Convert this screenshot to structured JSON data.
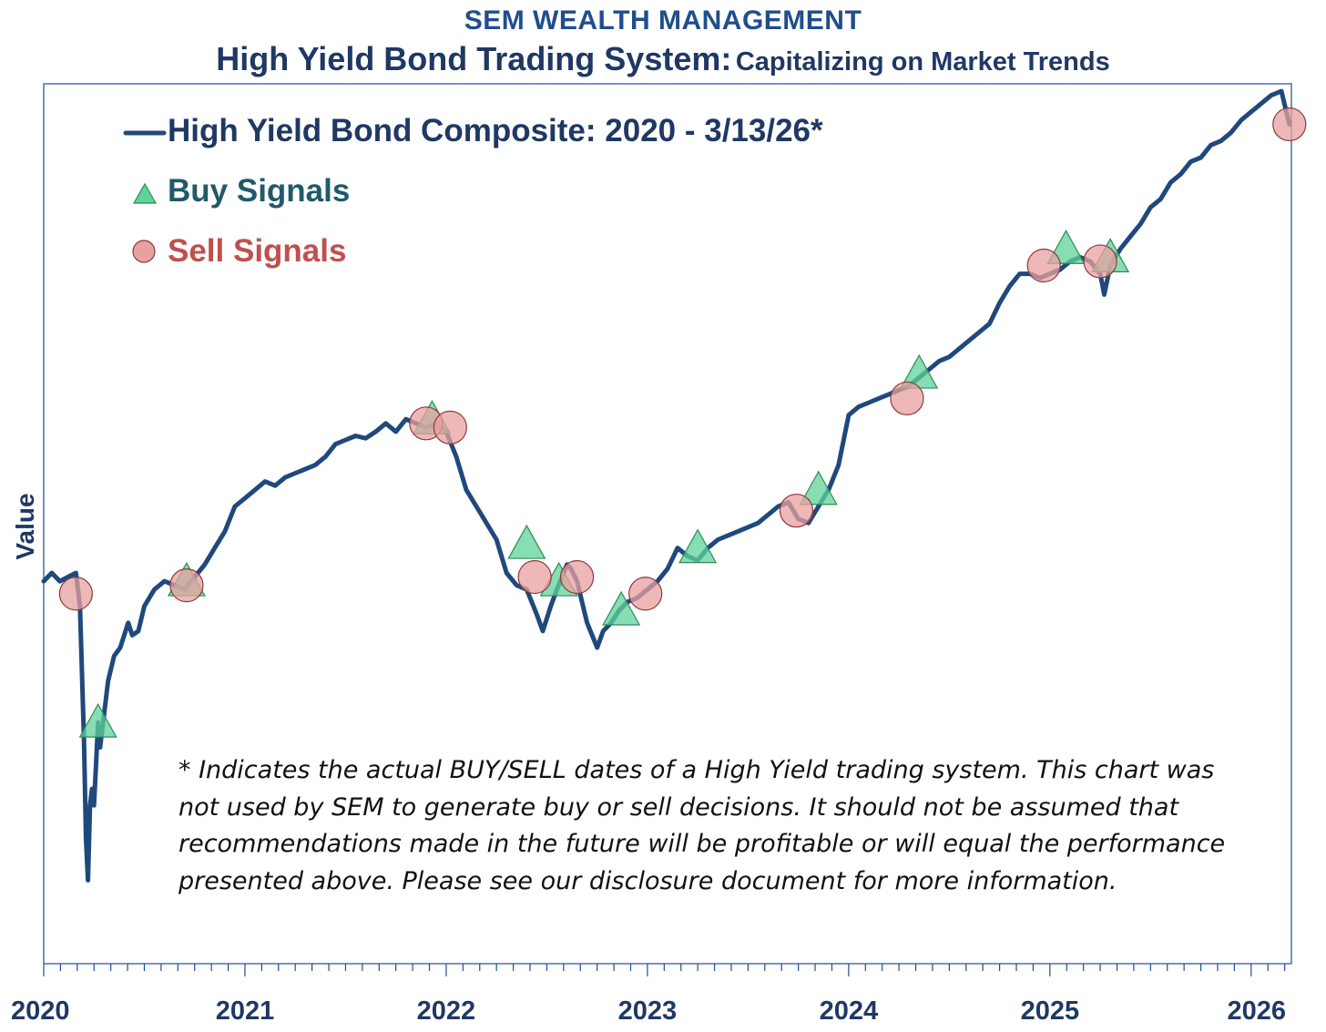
{
  "header": {
    "org": "SEM WEALTH MANAGEMENT",
    "title_main": "High Yield Bond Trading System:",
    "title_sub": "Capitalizing on Market Trends"
  },
  "footnote": "* Indicates the actual BUY/SELL dates of a High Yield trading system.  This chart was not used by SEM to generate buy or sell decisions.  It should not be assumed that recommendations  made in the future will be profitable or will equal the performance presented above.  Please see our disclosure document for more information.",
  "colors": {
    "line": "#1f497d",
    "buy_fill": "#5fd39a",
    "buy_stroke": "#2e8b57",
    "sell_fill": "#e8a0a0",
    "sell_stroke": "#8b3a3a",
    "axis": "#1f4e8c"
  },
  "chart_data": {
    "type": "line",
    "title": "High Yield Bond Trading System: Capitalizing on Market Trends",
    "xlabel": "",
    "ylabel": "Value",
    "xlim": [
      2020.0,
      2026.2
    ],
    "ylim": [
      0,
      100
    ],
    "x_ticks": [
      "2020",
      "2021",
      "2022",
      "2023",
      "2024",
      "2025",
      "2026"
    ],
    "legend": {
      "placement": "top-left",
      "series": "High Yield Bond Composite: 2020 - 3/13/26*",
      "buy": "Buy Signals",
      "sell": "Sell Signals"
    },
    "series": [
      {
        "name": "High Yield Bond Composite: 2020 - 3/13/26*",
        "x": [
          2020.0,
          2020.04,
          2020.08,
          2020.12,
          2020.16,
          2020.18,
          2020.2,
          2020.21,
          2020.22,
          2020.23,
          2020.24,
          2020.25,
          2020.26,
          2020.27,
          2020.28,
          2020.3,
          2020.32,
          2020.35,
          2020.38,
          2020.42,
          2020.44,
          2020.47,
          2020.5,
          2020.55,
          2020.6,
          2020.65,
          2020.7,
          2020.75,
          2020.8,
          2020.85,
          2020.9,
          2020.95,
          2021.0,
          2021.05,
          2021.1,
          2021.15,
          2021.2,
          2021.25,
          2021.3,
          2021.35,
          2021.4,
          2021.45,
          2021.5,
          2021.55,
          2021.6,
          2021.65,
          2021.7,
          2021.75,
          2021.8,
          2021.85,
          2021.9,
          2021.95,
          2022.0,
          2022.05,
          2022.1,
          2022.15,
          2022.2,
          2022.25,
          2022.3,
          2022.35,
          2022.4,
          2022.45,
          2022.48,
          2022.52,
          2022.55,
          2022.6,
          2022.62,
          2022.65,
          2022.7,
          2022.75,
          2022.78,
          2022.82,
          2022.86,
          2022.9,
          2022.95,
          2023.0,
          2023.05,
          2023.1,
          2023.15,
          2023.2,
          2023.25,
          2023.3,
          2023.35,
          2023.4,
          2023.45,
          2023.5,
          2023.55,
          2023.6,
          2023.65,
          2023.7,
          2023.75,
          2023.8,
          2023.85,
          2023.9,
          2023.95,
          2024.0,
          2024.05,
          2024.1,
          2024.15,
          2024.2,
          2024.25,
          2024.3,
          2024.35,
          2024.4,
          2024.45,
          2024.5,
          2024.55,
          2024.6,
          2024.65,
          2024.7,
          2024.75,
          2024.8,
          2024.85,
          2024.9,
          2024.95,
          2025.0,
          2025.05,
          2025.1,
          2025.15,
          2025.2,
          2025.25,
          2025.27,
          2025.3,
          2025.35,
          2025.4,
          2025.45,
          2025.5,
          2025.55,
          2025.6,
          2025.65,
          2025.7,
          2025.75,
          2025.8,
          2025.85,
          2025.9,
          2025.95,
          2026.0,
          2026.05,
          2026.1,
          2026.15,
          2026.19
        ],
        "values": [
          41.0,
          42.0,
          41.0,
          41.5,
          42.0,
          38.0,
          22.0,
          10.0,
          5.0,
          14.0,
          16.0,
          14.0,
          19.0,
          24.0,
          21.0,
          25.0,
          29.0,
          32.0,
          33.0,
          36.0,
          34.5,
          35.0,
          38.0,
          40.0,
          41.0,
          40.5,
          40.0,
          41.5,
          43.0,
          45.0,
          47.0,
          50.0,
          51.0,
          52.0,
          53.0,
          52.5,
          53.5,
          54.0,
          54.5,
          55.0,
          56.0,
          57.5,
          58.0,
          58.5,
          58.2,
          59.0,
          60.0,
          59.0,
          60.5,
          60.0,
          59.5,
          60.0,
          59.0,
          56.0,
          52.0,
          50.0,
          48.0,
          46.0,
          42.0,
          40.5,
          40.0,
          37.0,
          35.0,
          38.0,
          40.0,
          43.0,
          42.5,
          41.0,
          36.0,
          33.0,
          35.0,
          36.0,
          37.5,
          38.5,
          39.0,
          40.0,
          41.0,
          42.5,
          45.0,
          44.0,
          43.5,
          45.0,
          46.0,
          46.5,
          47.0,
          47.5,
          48.0,
          49.0,
          50.0,
          50.5,
          48.5,
          48.0,
          50.0,
          52.0,
          55.0,
          61.0,
          62.0,
          62.5,
          63.0,
          63.5,
          64.0,
          64.5,
          65.5,
          66.5,
          67.5,
          68.0,
          69.0,
          70.0,
          71.0,
          72.0,
          74.5,
          76.5,
          78.0,
          78.0,
          77.5,
          78.0,
          78.5,
          79.5,
          80.0,
          79.5,
          78.0,
          75.5,
          79.0,
          81.0,
          82.5,
          84.0,
          86.0,
          87.0,
          89.0,
          90.0,
          91.5,
          92.0,
          93.5,
          94.0,
          95.0,
          96.5,
          97.5,
          98.5,
          99.5,
          100.0,
          96.0
        ]
      }
    ],
    "buy_signals": [
      {
        "x": 2020.27,
        "y": 24.0
      },
      {
        "x": 2020.71,
        "y": 41.0
      },
      {
        "x": 2021.93,
        "y": 60.5
      },
      {
        "x": 2022.4,
        "y": 45.5
      },
      {
        "x": 2022.56,
        "y": 41.0
      },
      {
        "x": 2022.87,
        "y": 37.5
      },
      {
        "x": 2023.25,
        "y": 45.0
      },
      {
        "x": 2023.85,
        "y": 52.0
      },
      {
        "x": 2024.35,
        "y": 66.0
      },
      {
        "x": 2025.08,
        "y": 81.0
      },
      {
        "x": 2025.3,
        "y": 80.0
      }
    ],
    "sell_signals": [
      {
        "x": 2020.16,
        "y": 39.5
      },
      {
        "x": 2020.71,
        "y": 40.5
      },
      {
        "x": 2021.9,
        "y": 60.0
      },
      {
        "x": 2022.02,
        "y": 59.5
      },
      {
        "x": 2022.44,
        "y": 41.5
      },
      {
        "x": 2022.65,
        "y": 41.5
      },
      {
        "x": 2022.99,
        "y": 39.5
      },
      {
        "x": 2023.74,
        "y": 49.5
      },
      {
        "x": 2024.29,
        "y": 63.0
      },
      {
        "x": 2024.97,
        "y": 79.0
      },
      {
        "x": 2025.25,
        "y": 79.5
      },
      {
        "x": 2026.19,
        "y": 96.0
      }
    ]
  }
}
